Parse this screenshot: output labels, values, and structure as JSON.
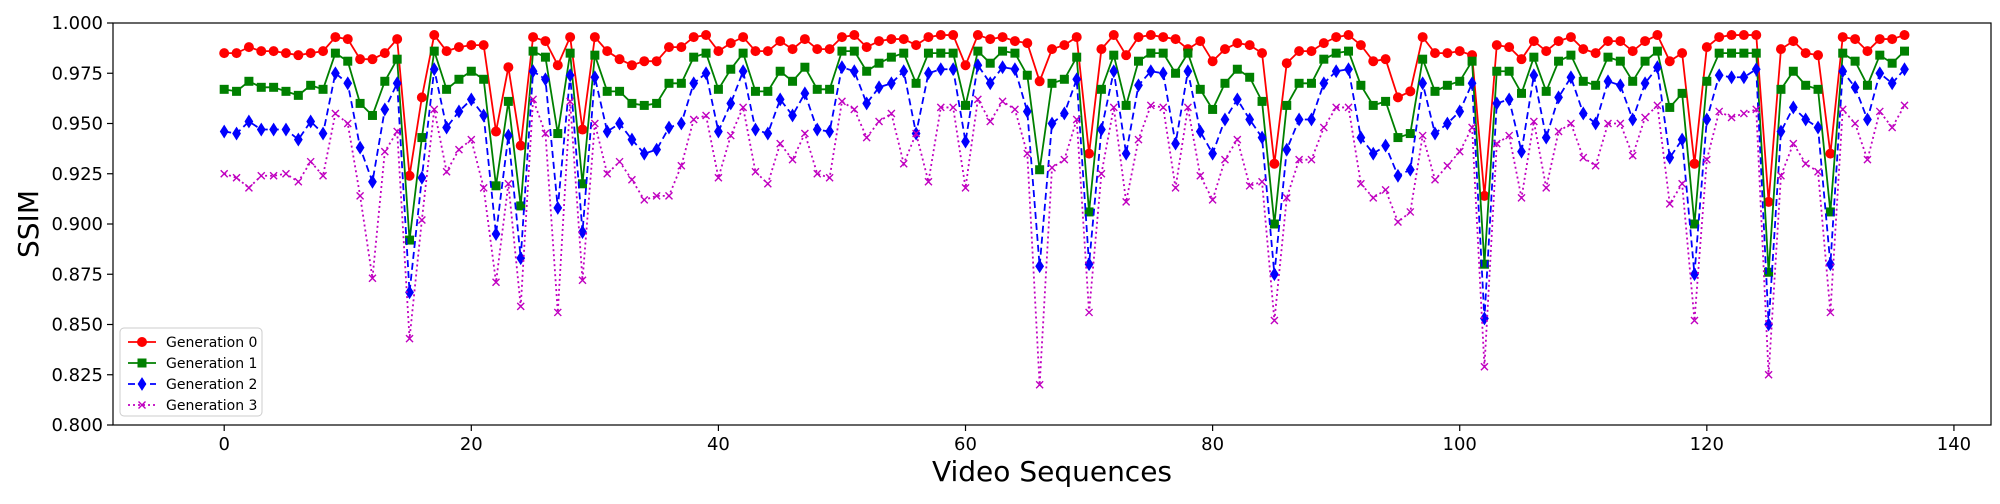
{
  "chart_data": {
    "type": "line",
    "title": "",
    "xlabel": "Video Sequences",
    "ylabel": "SSIM",
    "xlim": [
      -9,
      143
    ],
    "ylim": [
      0.8,
      1.0
    ],
    "x_ticks": [
      0,
      20,
      40,
      60,
      80,
      100,
      120,
      140
    ],
    "y_ticks": [
      0.8,
      0.825,
      0.85,
      0.875,
      0.9,
      0.925,
      0.95,
      0.975,
      1.0
    ],
    "x_tick_labels": [
      "0",
      "20",
      "40",
      "60",
      "80",
      "100",
      "120",
      "140"
    ],
    "y_tick_labels": [
      "0.800",
      "0.825",
      "0.850",
      "0.875",
      "0.900",
      "0.925",
      "0.950",
      "0.975",
      "1.000"
    ],
    "grid": false,
    "legend_position": "lower-left",
    "x": [
      0,
      1,
      2,
      3,
      4,
      5,
      6,
      7,
      8,
      9,
      10,
      11,
      12,
      13,
      14,
      15,
      16,
      17,
      18,
      19,
      20,
      21,
      22,
      23,
      24,
      25,
      26,
      27,
      28,
      29,
      30,
      31,
      32,
      33,
      34,
      35,
      36,
      37,
      38,
      39,
      40,
      41,
      42,
      43,
      44,
      45,
      46,
      47,
      48,
      49,
      50,
      51,
      52,
      53,
      54,
      55,
      56,
      57,
      58,
      59,
      60,
      61,
      62,
      63,
      64,
      65,
      66,
      67,
      68,
      69,
      70,
      71,
      72,
      73,
      74,
      75,
      76,
      77,
      78,
      79,
      80,
      81,
      82,
      83,
      84,
      85,
      86,
      87,
      88,
      89,
      90,
      91,
      92,
      93,
      94,
      95,
      96,
      97,
      98,
      99,
      100,
      101,
      102,
      103,
      104,
      105,
      106,
      107,
      108,
      109,
      110,
      111,
      112,
      113,
      114,
      115,
      116,
      117,
      118,
      119,
      120,
      121,
      122,
      123,
      124,
      125,
      126,
      127,
      128,
      129,
      130,
      131,
      132,
      133,
      134,
      135,
      136
    ],
    "series": [
      {
        "name": "Generation 0",
        "color": "#ff0000",
        "dash": "solid",
        "marker": "circle",
        "values": [
          0.985,
          0.985,
          0.988,
          0.986,
          0.986,
          0.985,
          0.984,
          0.985,
          0.986,
          0.993,
          0.992,
          0.982,
          0.982,
          0.985,
          0.992,
          0.924,
          0.963,
          0.994,
          0.986,
          0.988,
          0.989,
          0.989,
          0.946,
          0.978,
          0.939,
          0.993,
          0.991,
          0.979,
          0.993,
          0.947,
          0.993,
          0.986,
          0.982,
          0.979,
          0.981,
          0.981,
          0.988,
          0.988,
          0.993,
          0.994,
          0.986,
          0.99,
          0.993,
          0.986,
          0.986,
          0.991,
          0.987,
          0.992,
          0.987,
          0.987,
          0.993,
          0.994,
          0.988,
          0.991,
          0.992,
          0.992,
          0.989,
          0.993,
          0.994,
          0.994,
          0.979,
          0.994,
          0.992,
          0.993,
          0.991,
          0.99,
          0.971,
          0.987,
          0.989,
          0.993,
          0.935,
          0.987,
          0.994,
          0.984,
          0.993,
          0.994,
          0.993,
          0.992,
          0.987,
          0.991,
          0.981,
          0.987,
          0.99,
          0.989,
          0.985,
          0.93,
          0.98,
          0.986,
          0.986,
          0.99,
          0.993,
          0.994,
          0.989,
          0.981,
          0.982,
          0.963,
          0.966,
          0.993,
          0.985,
          0.985,
          0.986,
          0.984,
          0.914,
          0.989,
          0.988,
          0.982,
          0.991,
          0.986,
          0.991,
          0.993,
          0.987,
          0.985,
          0.991,
          0.991,
          0.986,
          0.991,
          0.994,
          0.981,
          0.985,
          0.93,
          0.988,
          0.993,
          0.994,
          0.994,
          0.994,
          0.911,
          0.987,
          0.991,
          0.985,
          0.984,
          0.935,
          0.993,
          0.992,
          0.986,
          0.992,
          0.992,
          0.994
        ]
      },
      {
        "name": "Generation 1",
        "color": "#008000",
        "dash": "solid",
        "marker": "square",
        "values": [
          0.967,
          0.966,
          0.971,
          0.968,
          0.968,
          0.966,
          0.964,
          0.969,
          0.967,
          0.985,
          0.981,
          0.96,
          0.954,
          0.971,
          0.982,
          0.892,
          0.943,
          0.986,
          0.967,
          0.972,
          0.976,
          0.972,
          0.919,
          0.961,
          0.909,
          0.986,
          0.983,
          0.945,
          0.985,
          0.92,
          0.984,
          0.966,
          0.966,
          0.96,
          0.959,
          0.96,
          0.97,
          0.97,
          0.983,
          0.985,
          0.967,
          0.977,
          0.985,
          0.966,
          0.966,
          0.976,
          0.971,
          0.978,
          0.967,
          0.967,
          0.986,
          0.986,
          0.976,
          0.98,
          0.983,
          0.985,
          0.97,
          0.985,
          0.985,
          0.985,
          0.959,
          0.986,
          0.98,
          0.986,
          0.985,
          0.974,
          0.927,
          0.97,
          0.972,
          0.983,
          0.906,
          0.967,
          0.984,
          0.959,
          0.981,
          0.985,
          0.985,
          0.975,
          0.985,
          0.967,
          0.957,
          0.97,
          0.977,
          0.973,
          0.961,
          0.9,
          0.959,
          0.97,
          0.97,
          0.982,
          0.985,
          0.986,
          0.969,
          0.959,
          0.961,
          0.943,
          0.945,
          0.982,
          0.966,
          0.969,
          0.971,
          0.981,
          0.88,
          0.976,
          0.976,
          0.965,
          0.983,
          0.966,
          0.981,
          0.984,
          0.971,
          0.969,
          0.983,
          0.981,
          0.971,
          0.981,
          0.986,
          0.958,
          0.965,
          0.9,
          0.971,
          0.985,
          0.985,
          0.985,
          0.985,
          0.876,
          0.967,
          0.976,
          0.969,
          0.967,
          0.906,
          0.985,
          0.981,
          0.969,
          0.984,
          0.98,
          0.986
        ]
      },
      {
        "name": "Generation 2",
        "color": "#0000ff",
        "dash": "dashed",
        "marker": "diamond",
        "values": [
          0.946,
          0.945,
          0.951,
          0.947,
          0.947,
          0.947,
          0.942,
          0.951,
          0.945,
          0.975,
          0.97,
          0.938,
          0.921,
          0.957,
          0.97,
          0.866,
          0.923,
          0.977,
          0.948,
          0.956,
          0.962,
          0.954,
          0.895,
          0.944,
          0.883,
          0.976,
          0.972,
          0.908,
          0.974,
          0.896,
          0.973,
          0.946,
          0.95,
          0.942,
          0.935,
          0.937,
          0.948,
          0.95,
          0.97,
          0.975,
          0.946,
          0.96,
          0.976,
          0.947,
          0.945,
          0.962,
          0.954,
          0.965,
          0.947,
          0.946,
          0.978,
          0.976,
          0.96,
          0.968,
          0.97,
          0.976,
          0.945,
          0.975,
          0.977,
          0.977,
          0.941,
          0.979,
          0.97,
          0.978,
          0.977,
          0.956,
          0.879,
          0.95,
          0.955,
          0.972,
          0.88,
          0.947,
          0.976,
          0.935,
          0.969,
          0.976,
          0.975,
          0.94,
          0.976,
          0.946,
          0.935,
          0.952,
          0.962,
          0.952,
          0.943,
          0.875,
          0.937,
          0.952,
          0.952,
          0.97,
          0.976,
          0.977,
          0.943,
          0.935,
          0.939,
          0.924,
          0.927,
          0.97,
          0.945,
          0.95,
          0.956,
          0.97,
          0.853,
          0.96,
          0.962,
          0.936,
          0.974,
          0.943,
          0.963,
          0.973,
          0.955,
          0.95,
          0.971,
          0.969,
          0.952,
          0.97,
          0.978,
          0.933,
          0.942,
          0.875,
          0.952,
          0.974,
          0.973,
          0.973,
          0.977,
          0.85,
          0.946,
          0.958,
          0.952,
          0.948,
          0.88,
          0.976,
          0.968,
          0.952,
          0.975,
          0.97,
          0.977
        ]
      },
      {
        "name": "Generation 3",
        "color": "#c000c0",
        "dash": "dotted",
        "marker": "x",
        "values": [
          0.925,
          0.923,
          0.918,
          0.924,
          0.924,
          0.925,
          0.921,
          0.931,
          0.924,
          0.955,
          0.95,
          0.914,
          0.873,
          0.936,
          0.946,
          0.843,
          0.902,
          0.957,
          0.926,
          0.937,
          0.942,
          0.918,
          0.871,
          0.92,
          0.859,
          0.962,
          0.945,
          0.856,
          0.961,
          0.872,
          0.95,
          0.925,
          0.931,
          0.922,
          0.912,
          0.914,
          0.914,
          0.929,
          0.952,
          0.954,
          0.923,
          0.944,
          0.958,
          0.926,
          0.92,
          0.94,
          0.932,
          0.945,
          0.925,
          0.923,
          0.961,
          0.957,
          0.943,
          0.951,
          0.955,
          0.93,
          0.945,
          0.921,
          0.958,
          0.958,
          0.918,
          0.962,
          0.951,
          0.961,
          0.957,
          0.935,
          0.82,
          0.928,
          0.932,
          0.952,
          0.856,
          0.925,
          0.958,
          0.911,
          0.942,
          0.959,
          0.958,
          0.918,
          0.958,
          0.924,
          0.912,
          0.932,
          0.942,
          0.919,
          0.921,
          0.852,
          0.913,
          0.932,
          0.932,
          0.948,
          0.958,
          0.958,
          0.92,
          0.913,
          0.917,
          0.901,
          0.906,
          0.944,
          0.922,
          0.929,
          0.936,
          0.948,
          0.829,
          0.94,
          0.944,
          0.913,
          0.951,
          0.918,
          0.946,
          0.95,
          0.933,
          0.929,
          0.95,
          0.95,
          0.934,
          0.953,
          0.959,
          0.91,
          0.92,
          0.852,
          0.932,
          0.956,
          0.953,
          0.955,
          0.957,
          0.825,
          0.924,
          0.94,
          0.93,
          0.926,
          0.856,
          0.957,
          0.95,
          0.932,
          0.956,
          0.948,
          0.959
        ]
      }
    ]
  }
}
